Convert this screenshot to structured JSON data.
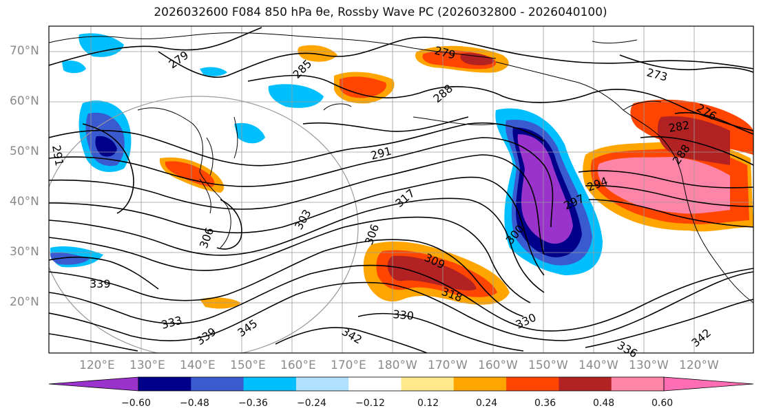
{
  "title": "2026032600 F084 850 hPa θe, Rossby Wave PC (2026032800 - 2026040100)",
  "map": {
    "lat_labels": [
      "70°N",
      "60°N",
      "50°N",
      "40°N",
      "30°N",
      "20°N"
    ],
    "lon_labels": [
      "120°E",
      "130°E",
      "140°E",
      "150°E",
      "160°E",
      "170°E",
      "180°W",
      "170°W",
      "160°W",
      "150°W",
      "140°W",
      "130°W",
      "120°W"
    ],
    "contour_labels": [
      "279",
      "285",
      "279",
      "288",
      "273",
      "276",
      "282",
      "288",
      "291",
      "291",
      "294",
      "297",
      "300",
      "317",
      "306",
      "303",
      "306",
      "309",
      "318",
      "330",
      "333",
      "339",
      "345",
      "342",
      "330",
      "336",
      "339",
      "342"
    ],
    "colors": {
      "coast": "#000000",
      "grid": "#9a9a9a"
    }
  },
  "colorbar": {
    "ticks": [
      "−0.60",
      "−0.48",
      "−0.36",
      "−0.24",
      "−0.12",
      "0.12",
      "0.24",
      "0.36",
      "0.48",
      "0.60"
    ],
    "colors": [
      "#9933cc",
      "#00008b",
      "#3a5bd0",
      "#00bfff",
      "#b0e2ff",
      "#ffffff",
      "#ffe98a",
      "#ffa500",
      "#ff4500",
      "#b22222",
      "#ff85a8",
      "#ff6eb4"
    ]
  }
}
